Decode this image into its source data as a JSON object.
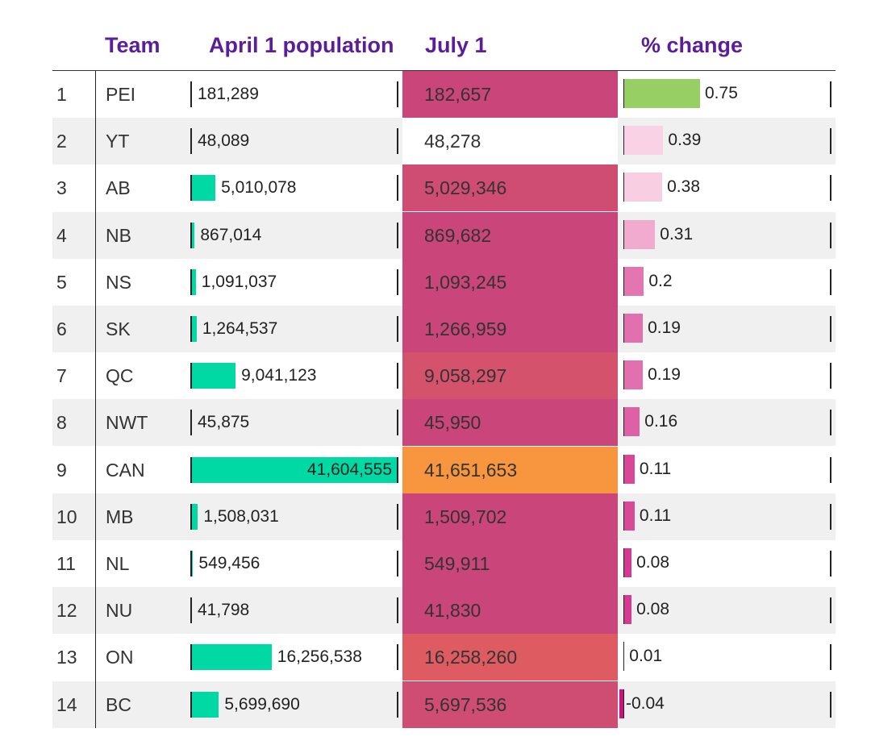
{
  "chart_data": {
    "type": "table",
    "columns": [
      "",
      "Team",
      "April 1 population",
      "July 1",
      "% change"
    ],
    "rows": [
      {
        "rank": "1",
        "team": "PEI",
        "april": 181289,
        "july": 182657,
        "change": 0.75
      },
      {
        "rank": "2",
        "team": "YT",
        "april": 48089,
        "july": 48278,
        "change": 0.39
      },
      {
        "rank": "3",
        "team": "AB",
        "april": 5010078,
        "july": 5029346,
        "change": 0.38
      },
      {
        "rank": "4",
        "team": "NB",
        "april": 867014,
        "july": 869682,
        "change": 0.31
      },
      {
        "rank": "5",
        "team": "NS",
        "april": 1091037,
        "july": 1093245,
        "change": 0.2
      },
      {
        "rank": "6",
        "team": "SK",
        "april": 1264537,
        "july": 1266959,
        "change": 0.19
      },
      {
        "rank": "7",
        "team": "QC",
        "april": 9041123,
        "july": 9058297,
        "change": 0.19
      },
      {
        "rank": "8",
        "team": "NWT",
        "april": 45875,
        "july": 45950,
        "change": 0.16
      },
      {
        "rank": "9",
        "team": "CAN",
        "april": 41604555,
        "july": 41651653,
        "change": 0.11
      },
      {
        "rank": "10",
        "team": "MB",
        "april": 1508031,
        "july": 1509702,
        "change": 0.11
      },
      {
        "rank": "11",
        "team": "NL",
        "april": 549456,
        "july": 549911,
        "change": 0.08
      },
      {
        "rank": "12",
        "team": "NU",
        "april": 41798,
        "july": 41830,
        "change": 0.08
      },
      {
        "rank": "13",
        "team": "ON",
        "april": 16256538,
        "july": 16258260,
        "change": 0.01
      },
      {
        "rank": "14",
        "team": "BC",
        "april": 5699690,
        "july": 5697536,
        "change": -0.04
      }
    ],
    "april_bar_max": 41604555,
    "change_bar_max": 0.75,
    "colors": {
      "header_text": "#5b1e9a",
      "april_bar": "#00d9a3",
      "july_high": "#f7963f",
      "july_mid": "#de5c61",
      "july_low": "#c9457a",
      "change_top": "#97cf65",
      "change_scale_low": "#fad8e8",
      "change_scale_high": "#cc127a",
      "row_stripe": "#f0f0f0"
    }
  }
}
